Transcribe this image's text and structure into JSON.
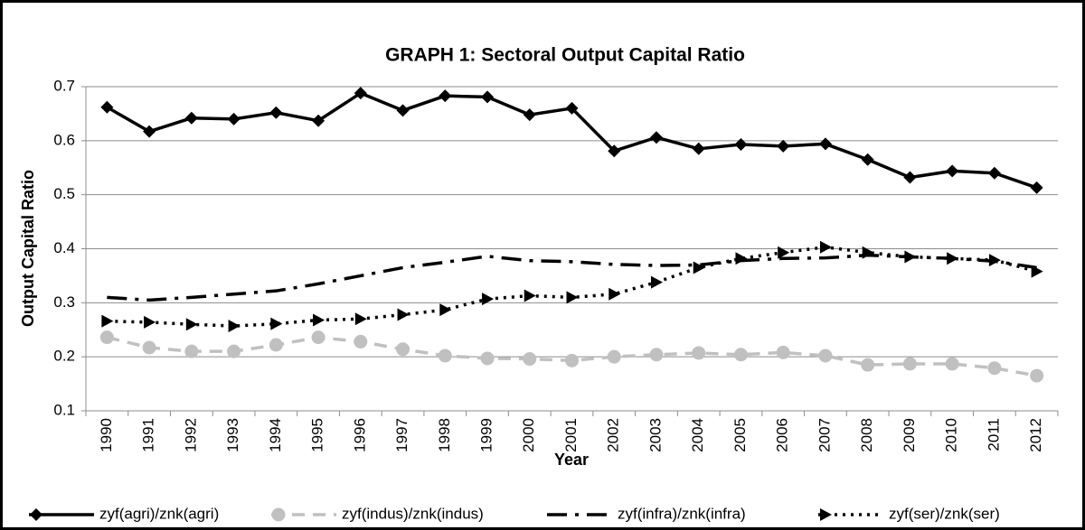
{
  "chart_data": {
    "type": "line",
    "title": "GRAPH 1: Sectoral Output Capital Ratio",
    "x_label": "Year",
    "y_label": "Output Capital Ratio",
    "categories": [
      "1990",
      "1991",
      "1992",
      "1993",
      "1994",
      "1995",
      "1996",
      "1997",
      "1998",
      "1999",
      "2000",
      "2001",
      "2002",
      "2003",
      "2004",
      "2005",
      "2006",
      "2007",
      "2008",
      "2009",
      "2010",
      "2011",
      "2012"
    ],
    "series": [
      {
        "name": "zyf(agri)/znk(agri)",
        "color": "#000000",
        "values": [
          0.662,
          0.617,
          0.642,
          0.64,
          0.652,
          0.637,
          0.688,
          0.656,
          0.683,
          0.681,
          0.648,
          0.66,
          0.581,
          0.606,
          0.585,
          0.593,
          0.59,
          0.594,
          0.565,
          0.532,
          0.544,
          0.54,
          0.513
        ]
      },
      {
        "name": "zyf(indus)/znk(indus)",
        "color": "#c0c0c0",
        "values": [
          0.236,
          0.217,
          0.21,
          0.21,
          0.222,
          0.236,
          0.228,
          0.214,
          0.202,
          0.197,
          0.196,
          0.193,
          0.2,
          0.204,
          0.207,
          0.204,
          0.208,
          0.202,
          0.185,
          0.187,
          0.187,
          0.179,
          0.165
        ]
      },
      {
        "name": "zyf(infra)/znk(infra)",
        "color": "#000000",
        "values": [
          0.31,
          0.305,
          0.31,
          0.316,
          0.322,
          0.335,
          0.35,
          0.365,
          0.375,
          0.386,
          0.378,
          0.376,
          0.371,
          0.369,
          0.37,
          0.378,
          0.382,
          0.383,
          0.388,
          0.385,
          0.382,
          0.377,
          0.365
        ]
      },
      {
        "name": "zyf(ser)/znk(ser)",
        "color": "#000000",
        "values": [
          0.266,
          0.264,
          0.26,
          0.257,
          0.261,
          0.268,
          0.27,
          0.278,
          0.287,
          0.307,
          0.313,
          0.31,
          0.316,
          0.338,
          0.365,
          0.382,
          0.393,
          0.403,
          0.393,
          0.385,
          0.382,
          0.379,
          0.358
        ]
      }
    ],
    "ylim": [
      0.1,
      0.7
    ],
    "yticks": [
      0.1,
      0.2,
      0.3,
      0.4,
      0.5,
      0.6,
      0.7
    ],
    "grid": true,
    "legend": "bottom"
  }
}
